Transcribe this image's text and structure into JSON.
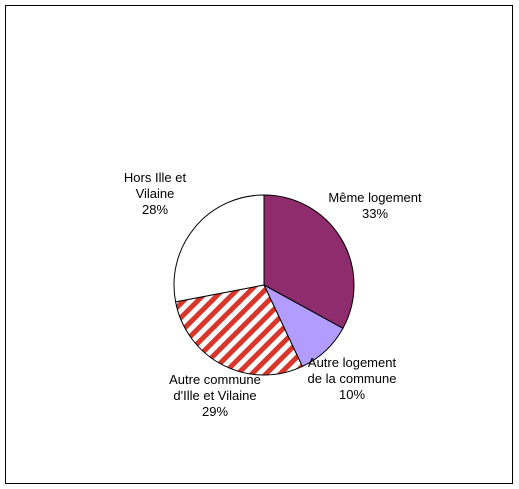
{
  "chart_data": {
    "type": "pie",
    "categories": [
      "Même logement",
      "Autre logement de la commune",
      "Autre commune d'Ille et Vilaine",
      "Hors Ille et Vilaine"
    ],
    "values": [
      33,
      10,
      29,
      28
    ],
    "value_labels": [
      "33%",
      "10%",
      "29%",
      "28%"
    ],
    "colors": [
      "#8e2c6e",
      "#b39cff",
      "#d8362a",
      "#ffffff"
    ],
    "hatch": [
      false,
      false,
      true,
      false
    ]
  }
}
